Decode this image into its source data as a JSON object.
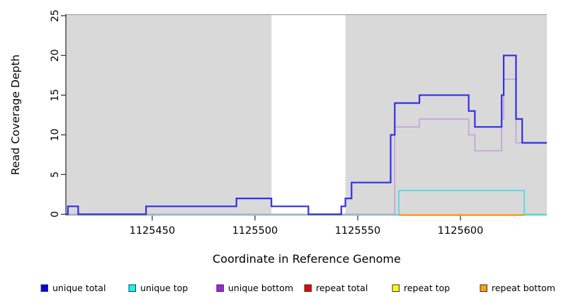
{
  "figure": {
    "description": "Read coverage depth step plot across a reference genome window",
    "background_color": "#ffffff",
    "shaded_band_color": "#d9d9d9",
    "plot_top_border_color": "#a8a8a8",
    "axis_color": "#2a2a2a",
    "baseline_zero_line_color": "#8fcf8f"
  },
  "chart_data": {
    "type": "line",
    "step": "after",
    "title": "",
    "xlabel": "Coordinate in Reference Genome",
    "ylabel": "Read Coverage Depth",
    "xlim": [
      1125408,
      1125642
    ],
    "ylim": [
      0,
      25
    ],
    "x_ticks": [
      1125450,
      1125500,
      1125550,
      1125600
    ],
    "y_ticks": [
      0,
      5,
      10,
      15,
      20,
      25
    ],
    "grid": false,
    "legend_position": "bottom",
    "shaded_regions": [
      {
        "from": 1125408,
        "to": 1125508
      },
      {
        "from": 1125544,
        "to": 1125642
      }
    ],
    "white_gap_region": {
      "from": 1125508,
      "to": 1125544
    },
    "baseline": {
      "value": 0,
      "from": 1125408,
      "to": 1125642,
      "color": "#8fcf8f"
    },
    "series": [
      {
        "name": "unique total",
        "legend_color": "#0000ee",
        "line_color": "#3230e2",
        "line_width": 2.2,
        "span": [
          1125408,
          1125642
        ],
        "points": [
          [
            1125408,
            0
          ],
          [
            1125409,
            1
          ],
          [
            1125414,
            0
          ],
          [
            1125447,
            1
          ],
          [
            1125491,
            2
          ],
          [
            1125508,
            1
          ],
          [
            1125526,
            0
          ],
          [
            1125542,
            1
          ],
          [
            1125544,
            2
          ],
          [
            1125547,
            4
          ],
          [
            1125566,
            10
          ],
          [
            1125568,
            14
          ],
          [
            1125580,
            15
          ],
          [
            1125604,
            13
          ],
          [
            1125607,
            11
          ],
          [
            1125620,
            15
          ],
          [
            1125621,
            20
          ],
          [
            1125627,
            12
          ],
          [
            1125630,
            9
          ]
        ]
      },
      {
        "name": "unique top",
        "legend_color": "#00ffff",
        "line_color": "#3fdde6",
        "line_width": 1.6,
        "span": [
          1125408,
          1125642
        ],
        "points": [
          [
            1125408,
            0
          ],
          [
            1125570,
            3
          ],
          [
            1125631,
            0
          ]
        ]
      },
      {
        "name": "unique bottom",
        "legend_color": "#a020f0",
        "line_color": "#c49be0",
        "line_width": 1.5,
        "span": [
          1125408,
          1125642
        ],
        "points": [
          [
            1125408,
            0
          ],
          [
            1125568,
            11
          ],
          [
            1125580,
            12
          ],
          [
            1125604,
            10
          ],
          [
            1125607,
            8
          ],
          [
            1125620,
            12
          ],
          [
            1125621,
            17
          ],
          [
            1125627,
            9
          ]
        ]
      },
      {
        "name": "repeat total",
        "legend_color": "#ee0000",
        "line_color": "#ee0000",
        "line_width": 1.2,
        "span": [
          1125570,
          1125631
        ],
        "points": [
          [
            1125570,
            0
          ]
        ]
      },
      {
        "name": "repeat top",
        "legend_color": "#ffff00",
        "line_color": "#ffff00",
        "line_width": 1.2,
        "span": [
          1125570,
          1125631
        ],
        "points": [
          [
            1125570,
            0
          ]
        ]
      },
      {
        "name": "repeat bottom",
        "legend_color": "#ffa10a",
        "line_color": "#ff9015",
        "line_width": 2.2,
        "span": [
          1125570,
          1125631
        ],
        "points": [
          [
            1125570,
            0
          ]
        ]
      }
    ]
  },
  "legend": {
    "items": [
      {
        "label": "unique total",
        "color": "#0000ee"
      },
      {
        "label": "unique top",
        "color": "#00ffff"
      },
      {
        "label": "unique bottom",
        "color": "#a020f0"
      },
      {
        "label": "repeat total",
        "color": "#ee0000"
      },
      {
        "label": "repeat top",
        "color": "#ffff00"
      },
      {
        "label": "repeat bottom",
        "color": "#ffa10a"
      }
    ]
  },
  "x_tick_labels": [
    "1125450",
    "1125500",
    "1125550",
    "1125600"
  ],
  "y_tick_labels": [
    "0",
    "5",
    "10",
    "15",
    "20",
    "25"
  ]
}
